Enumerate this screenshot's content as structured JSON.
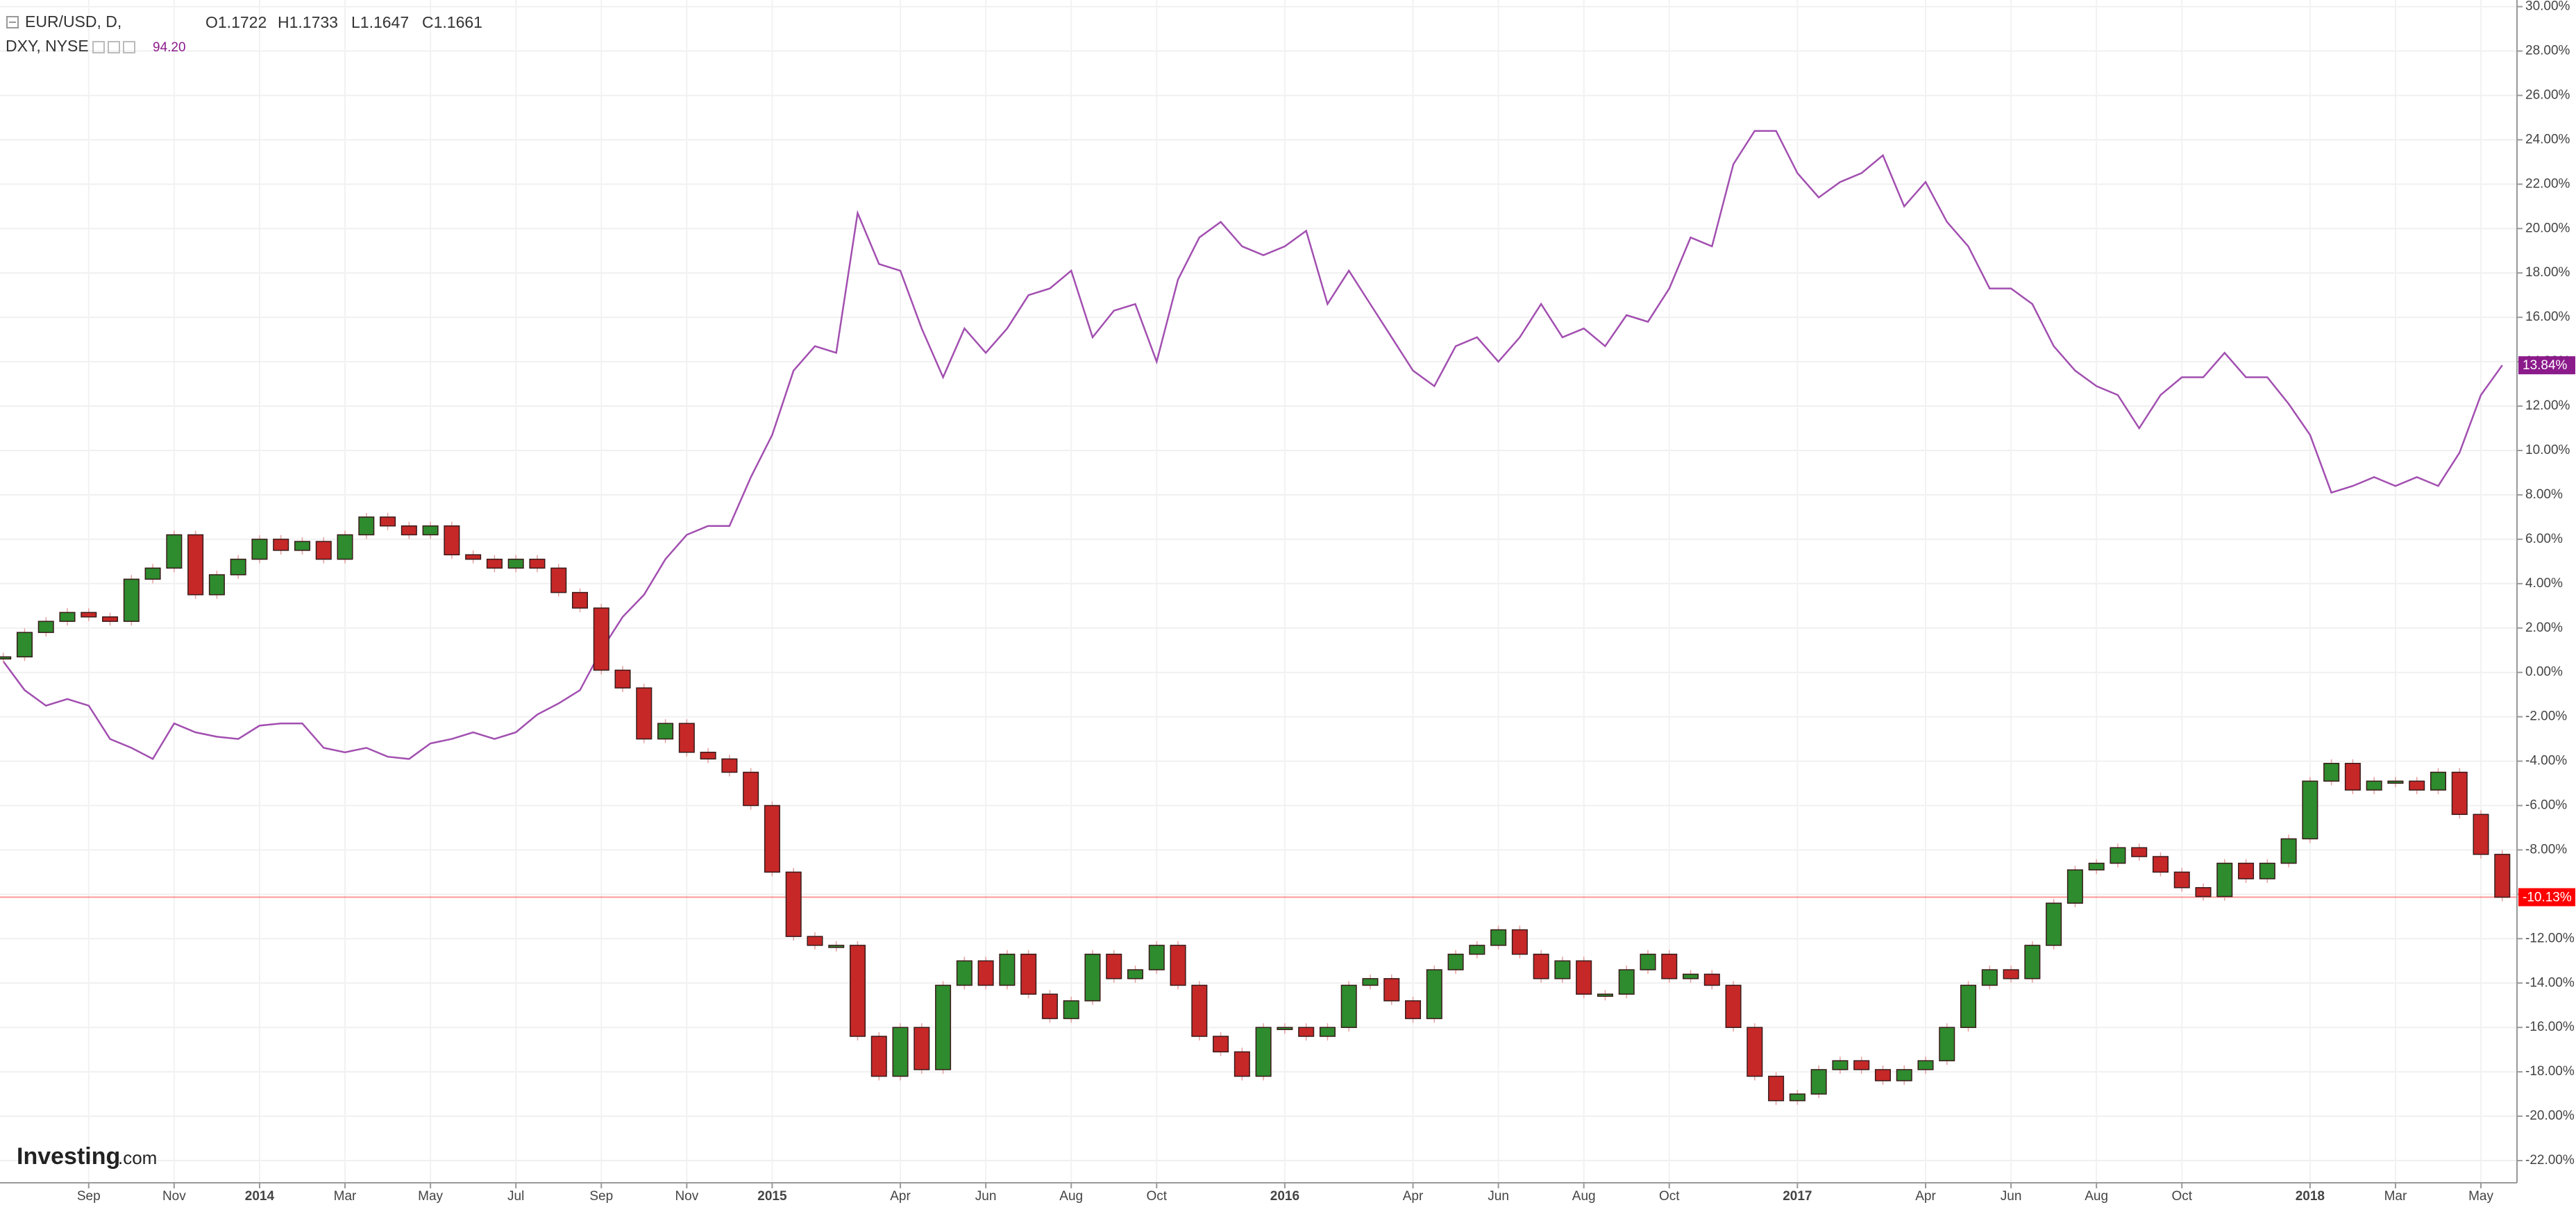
{
  "chart_data": {
    "type": "candlestick-compare",
    "logo": {
      "brand": "Investing",
      "suffix": ".com"
    },
    "categories": [
      null,
      null,
      null,
      null,
      "Sep",
      null,
      null,
      null,
      "Nov",
      null,
      null,
      null,
      "2014",
      null,
      null,
      null,
      "Mar",
      null,
      null,
      null,
      "May",
      null,
      null,
      null,
      "Jul",
      null,
      null,
      null,
      "Sep",
      null,
      null,
      null,
      "Nov",
      null,
      null,
      null,
      "2015",
      null,
      null,
      null,
      null,
      null,
      "Apr",
      null,
      null,
      null,
      "Jun",
      null,
      null,
      null,
      "Aug",
      null,
      null,
      null,
      "Oct",
      null,
      null,
      null,
      null,
      null,
      "2016",
      null,
      null,
      null,
      null,
      null,
      "Apr",
      null,
      null,
      null,
      "Jun",
      null,
      null,
      null,
      "Aug",
      null,
      null,
      null,
      "Oct",
      null,
      null,
      null,
      null,
      null,
      "2017",
      null,
      null,
      null,
      null,
      null,
      "Apr",
      null,
      null,
      null,
      "Jun",
      null,
      null,
      null,
      "Aug",
      null,
      null,
      null,
      "Oct",
      null,
      null,
      null,
      null,
      null,
      "2018",
      null,
      null,
      null,
      "Mar",
      null,
      null,
      null,
      "May",
      null
    ],
    "series": [
      {
        "name": "EUR/USD, D,",
        "quote": [
          "O1.1722",
          "H1.1733",
          "L1.1647",
          "C1.1661"
        ],
        "up_color": "#2e8b2e",
        "down_color": "#c62828",
        "color": "#ff0000",
        "last_value_label": "-10.13%",
        "values": [
          0.7,
          1.8,
          2.3,
          2.7,
          2.5,
          2.3,
          4.2,
          4.7,
          6.2,
          3.5,
          4.4,
          5.1,
          6.0,
          5.5,
          5.9,
          5.1,
          6.2,
          7.0,
          6.6,
          6.2,
          6.6,
          5.3,
          5.1,
          4.7,
          5.1,
          4.7,
          3.6,
          2.9,
          0.1,
          -0.7,
          -3.0,
          -2.3,
          -3.6,
          -3.9,
          -4.5,
          -6.0,
          -9.0,
          -11.9,
          -12.3,
          -12.3,
          -16.4,
          -18.2,
          -16.0,
          -17.9,
          -14.1,
          -13.0,
          -14.1,
          -12.7,
          -14.5,
          -15.6,
          -14.8,
          -12.7,
          -13.8,
          -13.4,
          -12.3,
          -14.1,
          -16.4,
          -17.1,
          -18.2,
          -16.0,
          -16.0,
          -16.4,
          -16.0,
          -14.1,
          -13.8,
          -14.8,
          -15.6,
          -13.4,
          -12.7,
          -12.3,
          -11.6,
          -12.7,
          -13.8,
          -13.0,
          -14.5,
          -14.5,
          -13.4,
          -12.7,
          -13.8,
          -13.6,
          -14.1,
          -16.0,
          -18.2,
          -19.3,
          -19.0,
          -17.9,
          -17.5,
          -17.9,
          -18.4,
          -17.9,
          -17.5,
          -16.0,
          -14.1,
          -13.4,
          -13.8,
          -12.3,
          -10.4,
          -8.9,
          -8.6,
          -7.9,
          -8.3,
          -9.0,
          -9.7,
          -10.1,
          -8.6,
          -9.3,
          -8.6,
          -7.5,
          -4.9,
          -4.1,
          -5.3,
          -4.9,
          -4.9,
          -5.3,
          -4.5,
          -6.4,
          -8.2,
          -10.13
        ]
      },
      {
        "name": "DXY, NYSE",
        "quote": "94.20",
        "color": "#a24fb0",
        "label_color": "#8b1a8b",
        "last_value_label": "13.84%",
        "values": [
          0.5,
          -0.8,
          -1.5,
          -1.2,
          -1.5,
          -3.0,
          -3.4,
          -3.9,
          -2.3,
          -2.7,
          -2.9,
          -3.0,
          -2.4,
          -2.3,
          -2.3,
          -3.4,
          -3.6,
          -3.4,
          -3.8,
          -3.9,
          -3.2,
          -3.0,
          -2.7,
          -3.0,
          -2.7,
          -1.9,
          -1.4,
          -0.8,
          1.0,
          2.5,
          3.5,
          5.1,
          6.2,
          6.6,
          6.6,
          8.8,
          10.7,
          13.6,
          14.7,
          14.4,
          20.7,
          18.4,
          18.1,
          15.5,
          13.3,
          15.5,
          14.4,
          15.5,
          17.0,
          17.3,
          18.1,
          15.1,
          16.3,
          16.6,
          14.0,
          17.7,
          19.6,
          20.3,
          19.2,
          18.8,
          19.2,
          19.9,
          16.6,
          18.1,
          16.6,
          15.1,
          13.6,
          12.9,
          14.7,
          15.1,
          14.0,
          15.1,
          16.6,
          15.1,
          15.5,
          14.7,
          16.1,
          15.8,
          17.3,
          19.6,
          19.2,
          22.9,
          24.4,
          24.4,
          22.5,
          21.4,
          22.1,
          22.5,
          23.3,
          21.0,
          22.1,
          20.3,
          19.2,
          17.3,
          17.3,
          16.6,
          14.7,
          13.6,
          12.9,
          12.5,
          11.0,
          12.5,
          13.3,
          13.3,
          14.4,
          13.3,
          13.3,
          12.1,
          10.7,
          8.1,
          8.4,
          8.8,
          8.4,
          8.8,
          8.4,
          9.9,
          12.5,
          13.84
        ]
      }
    ],
    "ylim": [
      -23,
      30.3
    ],
    "yticks": [
      {
        "value": -22,
        "label": "-22.00%"
      },
      {
        "value": -20,
        "label": "-20.00%"
      },
      {
        "value": -18,
        "label": "-18.00%"
      },
      {
        "value": -16,
        "label": "-16.00%"
      },
      {
        "value": -14,
        "label": "-14.00%"
      },
      {
        "value": -12,
        "label": "-12.00%"
      },
      {
        "value": -10,
        "label": "-10.00%"
      },
      {
        "value": -8,
        "label": "-8.00%"
      },
      {
        "value": -6,
        "label": "-6.00%"
      },
      {
        "value": -4,
        "label": "-4.00%"
      },
      {
        "value": -2,
        "label": "-2.00%"
      },
      {
        "value": 0,
        "label": "0.00%"
      },
      {
        "value": 2,
        "label": "2.00%"
      },
      {
        "value": 4,
        "label": "4.00%"
      },
      {
        "value": 6,
        "label": "6.00%"
      },
      {
        "value": 8,
        "label": "8.00%"
      },
      {
        "value": 10,
        "label": "10.00%"
      },
      {
        "value": 12,
        "label": "12.00%"
      },
      {
        "value": 14,
        "label": "14.00%"
      },
      {
        "value": 16,
        "label": "16.00%"
      },
      {
        "value": 18,
        "label": "18.00%"
      },
      {
        "value": 20,
        "label": "20.00%"
      },
      {
        "value": 22,
        "label": "22.00%"
      },
      {
        "value": 24,
        "label": "24.00%"
      },
      {
        "value": 26,
        "label": "26.00%"
      },
      {
        "value": 28,
        "label": "28.00%"
      },
      {
        "value": 30,
        "label": "30.00%"
      }
    ],
    "grid": true
  }
}
